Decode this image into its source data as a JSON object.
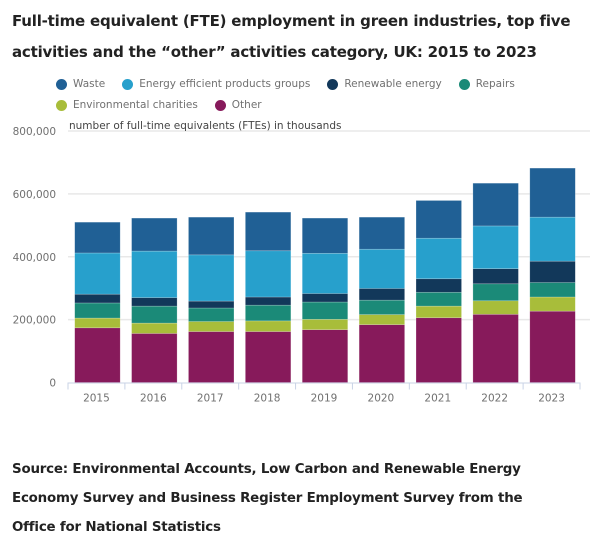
{
  "title_lines": [
    "Full-time equivalent (FTE) employment in green industries, top five",
    "activities and the “other” activities category, UK: 2015 to 2023"
  ],
  "source_lines": [
    "Source: Environmental Accounts, Low Carbon and Renewable Energy",
    "Economy Survey and Business Register Employment Survey from the",
    "Office for National Statistics"
  ],
  "legend": {
    "rows": [
      [
        {
          "label": "Waste",
          "color": "#206095"
        },
        {
          "label": "Energy efficient products groups",
          "color": "#27a0cc"
        },
        {
          "label": "Renewable energy",
          "color": "#12385a"
        },
        {
          "label": "Repairs",
          "color": "#1b8a78"
        }
      ],
      [
        {
          "label": "Environmental charities",
          "color": "#a8bd3a"
        },
        {
          "label": "Other",
          "color": "#871a5b"
        }
      ]
    ]
  },
  "chart_data": {
    "type": "bar",
    "stacked": true,
    "title": "Full-time equivalent (FTE) employment in green industries, top five activities and the “other” activities category, UK: 2015 to 2023",
    "ylabel": "number of full-time equivalents (FTEs) in thousands",
    "xlabel": "",
    "ylim": [
      0,
      800000
    ],
    "yticks": [
      0,
      200000,
      400000,
      600000,
      800000
    ],
    "ytick_labels": [
      "0",
      "200,000",
      "400,000",
      "600,000",
      "800,000"
    ],
    "grid": true,
    "legend_position": "top",
    "categories": [
      "2015",
      "2016",
      "2017",
      "2018",
      "2019",
      "2020",
      "2021",
      "2022",
      "2023"
    ],
    "series": [
      {
        "name": "Other",
        "color": "#871a5b",
        "values": [
          174000,
          156000,
          162000,
          162000,
          168000,
          184000,
          206000,
          217000,
          227000
        ]
      },
      {
        "name": "Environmental charities",
        "color": "#a8bd3a",
        "values": [
          31000,
          33000,
          32000,
          34000,
          33000,
          32000,
          37000,
          43000,
          45000
        ]
      },
      {
        "name": "Repairs",
        "color": "#1b8a78",
        "values": [
          48000,
          54000,
          43000,
          50000,
          55000,
          46000,
          44000,
          54000,
          46000
        ]
      },
      {
        "name": "Renewable energy",
        "color": "#12385a",
        "values": [
          28000,
          27000,
          22000,
          26000,
          27000,
          37000,
          43000,
          48000,
          68000
        ]
      },
      {
        "name": "Energy efficient products groups",
        "color": "#27a0cc",
        "values": [
          131000,
          148000,
          147000,
          147000,
          128000,
          125000,
          129000,
          136000,
          140000
        ]
      },
      {
        "name": "Waste",
        "color": "#206095",
        "values": [
          98000,
          105000,
          120000,
          123000,
          112000,
          102000,
          120000,
          136000,
          156000
        ]
      }
    ]
  }
}
